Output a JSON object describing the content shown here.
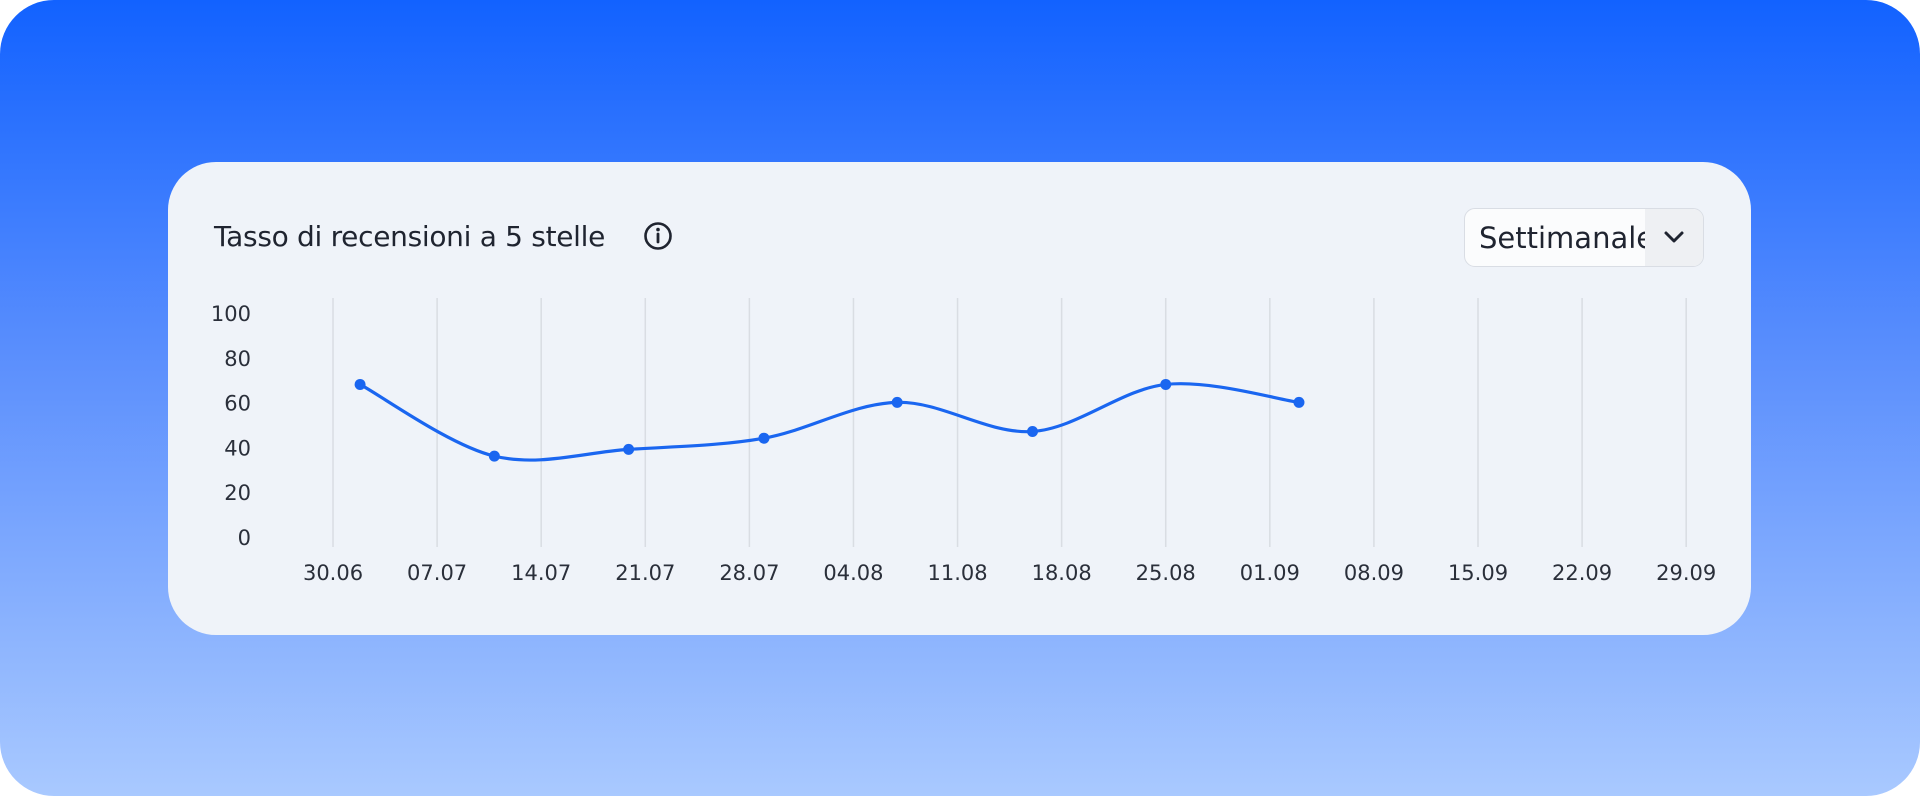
{
  "period_selector": "Settimanale",
  "chart_data": {
    "type": "line",
    "title": "Tasso di recensioni a 5 stelle",
    "xlim": [
      -0.25,
      13.2
    ],
    "xticks": [
      {
        "value": 0,
        "label": "30.06"
      },
      {
        "value": 1,
        "label": "07.07"
      },
      {
        "value": 2,
        "label": "14.07"
      },
      {
        "value": 3,
        "label": "21.07"
      },
      {
        "value": 4,
        "label": "28.07"
      },
      {
        "value": 5,
        "label": "04.08"
      },
      {
        "value": 6,
        "label": "11.08"
      },
      {
        "value": 7,
        "label": "18.08"
      },
      {
        "value": 8,
        "label": "25.08"
      },
      {
        "value": 9,
        "label": "01.09"
      },
      {
        "value": 10,
        "label": "08.09"
      },
      {
        "value": 11,
        "label": "15.09"
      },
      {
        "value": 12,
        "label": "22.09"
      },
      {
        "value": 13,
        "label": "29.09"
      }
    ],
    "ylim": [
      0,
      100
    ],
    "yticks": [
      0,
      20,
      40,
      60,
      80,
      100
    ],
    "grid": true,
    "series": [
      {
        "color": "#1a66f0",
        "x": [
          0.26,
          1.55,
          2.84,
          4.14,
          5.42,
          6.72,
          8.0,
          9.28
        ],
        "values": [
          69,
          37,
          40,
          45,
          61,
          48,
          69,
          61
        ]
      }
    ]
  }
}
